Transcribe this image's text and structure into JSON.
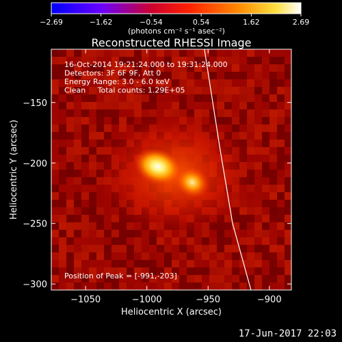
{
  "chart_data": {
    "type": "heatmap",
    "title": "Reconstructed RHESSI Image",
    "xlabel": "Heliocentric X (arcsec)",
    "ylabel": "Heliocentric Y (arcsec)",
    "xlim": [
      -1078,
      -882
    ],
    "ylim": [
      -305,
      -106
    ],
    "x_ticks": [
      -1050,
      -1000,
      -950,
      -900
    ],
    "x_tick_labels": [
      "−1050",
      "−1000",
      "−950",
      "−900"
    ],
    "y_ticks": [
      -150,
      -200,
      -250,
      -300
    ],
    "y_tick_labels": [
      "−150",
      "−200",
      "−250",
      "−300"
    ],
    "colorbar": {
      "min": -2.69,
      "max": 2.69,
      "ticks": [
        -2.69,
        -1.62,
        -0.54,
        0.54,
        1.62,
        2.69
      ],
      "tick_labels": [
        "−2.69",
        "−1.62",
        "−0.54",
        "0.54",
        "1.62",
        "2.69"
      ],
      "unit_label": "(photons cm⁻² s⁻¹ asec⁻²)",
      "colors": [
        "#0000ff",
        "#7a00ff",
        "#ff0000",
        "#ff8000",
        "#ffff60",
        "#ffffff"
      ]
    },
    "sources": [
      {
        "x": -991,
        "y": -203,
        "peak": 2.69
      },
      {
        "x": -963,
        "y": -216,
        "peak": 1.9
      }
    ],
    "annotations": [
      "16-Oct-2014 19:21:24.000 to 19:31:24.000",
      "Detectors: 3F 6F 9F, Att 0",
      "Energy Range: 3.0 - 6.0 keV",
      "Clean     Total counts: 1.29E+05"
    ],
    "peak_label": "Position of Peak = [-991,-203]",
    "limb": [
      {
        "x": -953,
        "y": -106
      },
      {
        "x": -940,
        "y": -190
      },
      {
        "x": -930,
        "y": -250
      },
      {
        "x": -915,
        "y": -305
      }
    ]
  },
  "footer_date": "17-Jun-2017 22:03"
}
